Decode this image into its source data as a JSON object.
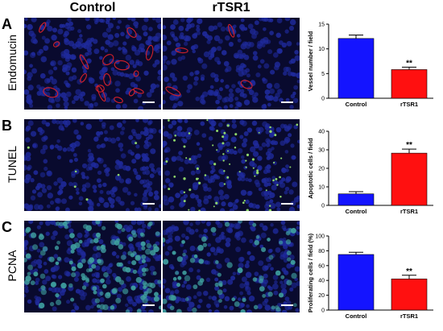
{
  "column_headers": [
    "Control",
    "rTSR1"
  ],
  "panels": [
    {
      "letter": "A",
      "stain": "Endomucin"
    },
    {
      "letter": "B",
      "stain": "TUNEL"
    },
    {
      "letter": "C",
      "stain": "PCNA"
    }
  ],
  "colors": {
    "control": "#1414ff",
    "rtsr1": "#ff1010",
    "nuclei": "#1f2a9c",
    "endomucin": "#d4202a",
    "tunel": "#8fd66a",
    "pcna": "#3fa0a0"
  },
  "chart_data": [
    {
      "type": "bar",
      "categories": [
        "Control",
        "rTSR1"
      ],
      "values": [
        12.1,
        5.8
      ],
      "errors": [
        0.7,
        0.5
      ],
      "ylabel": "Vessel number / field",
      "ylim": [
        0,
        15
      ],
      "yticks": [
        0,
        5,
        10,
        15
      ],
      "annotations": [
        "",
        "**"
      ]
    },
    {
      "type": "bar",
      "categories": [
        "Control",
        "rTSR1"
      ],
      "values": [
        6.2,
        28.2
      ],
      "errors": [
        1.2,
        2.2
      ],
      "ylabel": "Apoptotic cells / field",
      "ylim": [
        0,
        40
      ],
      "yticks": [
        0,
        10,
        20,
        30,
        40
      ],
      "annotations": [
        "",
        "**"
      ]
    },
    {
      "type": "bar",
      "categories": [
        "Control",
        "rTSR1"
      ],
      "values": [
        75,
        42
      ],
      "errors": [
        3,
        5
      ],
      "ylabel": "Proliferating cells / field (%)",
      "ylim": [
        0,
        100
      ],
      "yticks": [
        0,
        20,
        40,
        60,
        80,
        100
      ],
      "annotations": [
        "",
        "**"
      ]
    }
  ]
}
